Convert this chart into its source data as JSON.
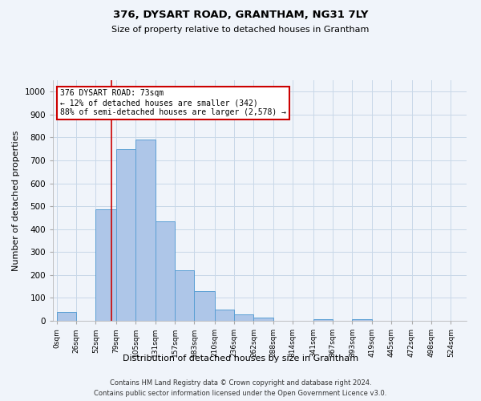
{
  "title1": "376, DYSART ROAD, GRANTHAM, NG31 7LY",
  "title2": "Size of property relative to detached houses in Grantham",
  "xlabel": "Distribution of detached houses by size in Grantham",
  "ylabel": "Number of detached properties",
  "bin_labels": [
    "0sqm",
    "26sqm",
    "52sqm",
    "79sqm",
    "105sqm",
    "131sqm",
    "157sqm",
    "183sqm",
    "210sqm",
    "236sqm",
    "262sqm",
    "288sqm",
    "314sqm",
    "341sqm",
    "367sqm",
    "393sqm",
    "419sqm",
    "445sqm",
    "472sqm",
    "498sqm",
    "524sqm"
  ],
  "bin_edges": [
    0,
    26,
    52,
    79,
    105,
    131,
    157,
    183,
    210,
    236,
    262,
    288,
    314,
    341,
    367,
    393,
    419,
    445,
    472,
    498,
    524
  ],
  "bar_heights": [
    40,
    0,
    485,
    748,
    792,
    435,
    222,
    128,
    50,
    28,
    15,
    0,
    0,
    8,
    0,
    8,
    0,
    0,
    0,
    0
  ],
  "bar_color": "#aec6e8",
  "bar_edge_color": "#5a9fd4",
  "property_size": 73,
  "vline_color": "#cc0000",
  "annotation_text": "376 DYSART ROAD: 73sqm\n← 12% of detached houses are smaller (342)\n88% of semi-detached houses are larger (2,578) →",
  "annotation_box_color": "#ffffff",
  "annotation_box_edge_color": "#cc0000",
  "ylim": [
    0,
    1050
  ],
  "yticks": [
    0,
    100,
    200,
    300,
    400,
    500,
    600,
    700,
    800,
    900,
    1000
  ],
  "footnote1": "Contains HM Land Registry data © Crown copyright and database right 2024.",
  "footnote2": "Contains public sector information licensed under the Open Government Licence v3.0.",
  "bg_color": "#f0f4fa",
  "grid_color": "#c8d8e8"
}
